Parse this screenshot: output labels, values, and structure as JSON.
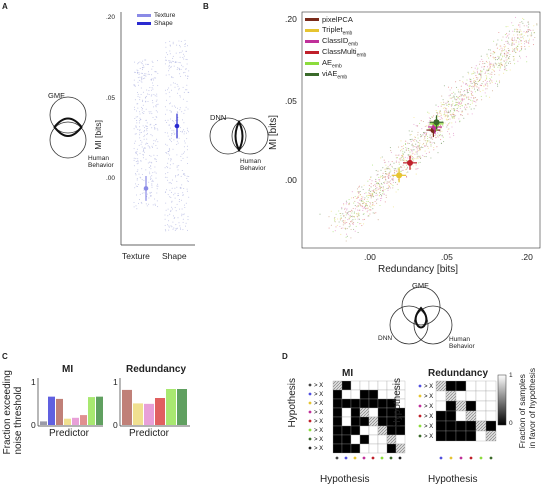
{
  "panels": {
    "a": "A",
    "b": "B",
    "c": "C",
    "d": "D"
  },
  "panel_a": {
    "legend": [
      {
        "label": "Texture",
        "color": "#8a8ae6"
      },
      {
        "label": "Shape",
        "color": "#2a2ad0"
      }
    ],
    "venn": {
      "top": "GMF",
      "bottom": "Human\nBehavior"
    },
    "ylabel": "MI [bits]",
    "yticks": [
      ".00",
      ".05",
      ".20"
    ],
    "xticks": [
      "Texture",
      "Shape"
    ]
  },
  "panel_b": {
    "legend": [
      {
        "label": "pixelPCA",
        "sub": "",
        "color": "#7a2a1a"
      },
      {
        "label": "Triplet",
        "sub": "emb",
        "color": "#e6c430"
      },
      {
        "label": "ClassID",
        "sub": "emb",
        "color": "#c0309a"
      },
      {
        "label": "ClassMulti",
        "sub": "emb",
        "color": "#c0202a"
      },
      {
        "label": "AE",
        "sub": "emb",
        "color": "#8cdc3c"
      },
      {
        "label": "viAE",
        "sub": "emb",
        "color": "#3a6a2a"
      }
    ],
    "venn_left": {
      "top": "DNN",
      "bottom": "Human\nBehavior"
    },
    "venn_bottom": {
      "top": "GMF",
      "left": "DNN",
      "right": "Human\nBehavior"
    },
    "ylabel": "MI [bits]",
    "xlabel": "Redundancy [bits]",
    "yticks": [
      ".00",
      ".05",
      ".20"
    ],
    "xticks": [
      ".00",
      ".05",
      ".20"
    ]
  },
  "panel_c": {
    "ylabel": "Fraction exceeding\nnoise threshold",
    "charts": [
      {
        "title": "MI",
        "xlabel": "Predictor",
        "ytick_top": "1",
        "ytick_bottom": "0"
      },
      {
        "title": "Redundancy",
        "xlabel": "Predictor",
        "ytick_top": "1",
        "ytick_bottom": "0"
      }
    ]
  },
  "panel_d": {
    "charts": [
      {
        "title": "MI",
        "ylabel": "Hypothesis",
        "xlabel": "Hypothesis"
      },
      {
        "title": "Redundancy",
        "ylabel": "Hypothesis",
        "xlabel": "Hypothesis"
      }
    ],
    "colorbar": {
      "top": "1",
      "bottom": "0",
      "label": "Fraction of samples\nin favor of hypothesis"
    }
  },
  "chart_data": [
    {
      "type": "scatter",
      "title": "",
      "ylabel": "MI [bits]",
      "categories": [
        "Texture",
        "Shape"
      ],
      "series": [
        {
          "name": "Texture",
          "mean": -0.004,
          "ci": [
            -0.008,
            0.0
          ]
        },
        {
          "name": "Shape",
          "mean": 0.035,
          "ci": [
            0.031,
            0.039
          ]
        }
      ]
    },
    {
      "type": "scatter",
      "title": "",
      "xlabel": "Redundancy [bits]",
      "ylabel": "MI [bits]",
      "series": [
        {
          "name": "pixelPCA",
          "x": 0.04,
          "y": 0.032
        },
        {
          "name": "Triplet_emb",
          "x": 0.018,
          "y": 0.003
        },
        {
          "name": "ClassID_emb",
          "x": 0.041,
          "y": 0.034
        },
        {
          "name": "ClassMulti_emb",
          "x": 0.025,
          "y": 0.011
        },
        {
          "name": "AE_emb",
          "x": 0.042,
          "y": 0.036
        },
        {
          "name": "viAE_emb",
          "x": 0.042,
          "y": 0.037
        }
      ]
    },
    {
      "type": "bar",
      "title": "MI",
      "xlabel": "Predictor",
      "ylim": [
        0,
        1
      ],
      "series": [
        {
          "name": "pixelPCA",
          "values": [
            0.08
          ]
        },
        {
          "name": "Texture",
          "values": [
            0.63
          ]
        },
        {
          "name": "Shape",
          "values": [
            0.58
          ]
        },
        {
          "name": "Triplet_emb",
          "values": [
            0.14
          ]
        },
        {
          "name": "ClassID_emb",
          "values": [
            0.16
          ]
        },
        {
          "name": "ClassMulti_emb",
          "values": [
            0.22
          ]
        },
        {
          "name": "AE_emb",
          "values": [
            0.62
          ]
        },
        {
          "name": "viAE_emb",
          "values": [
            0.63
          ]
        }
      ]
    },
    {
      "type": "bar",
      "title": "Redundancy",
      "xlabel": "Predictor",
      "ylim": [
        0,
        1
      ],
      "series": [
        {
          "name": "pixelPCA",
          "values": [
            0.78
          ]
        },
        {
          "name": "Triplet_emb",
          "values": [
            0.48
          ]
        },
        {
          "name": "ClassID_emb",
          "values": [
            0.47
          ]
        },
        {
          "name": "ClassMulti_emb",
          "values": [
            0.6
          ]
        },
        {
          "name": "AE_emb",
          "values": [
            0.8
          ]
        },
        {
          "name": "viAE_emb",
          "values": [
            0.8
          ]
        }
      ]
    },
    {
      "type": "heatmap",
      "title": "MI",
      "xlabel": "Hypothesis",
      "ylabel": "Hypothesis",
      "rows": [
        [
          0.5,
          1,
          0,
          0,
          0,
          0,
          0,
          0
        ],
        [
          1,
          0,
          0,
          1,
          1,
          0,
          0,
          0
        ],
        [
          1,
          1,
          1,
          1,
          1,
          1,
          1,
          0
        ],
        [
          1,
          0,
          1,
          0.5,
          0,
          1,
          1,
          1
        ],
        [
          1,
          0,
          1,
          1,
          0.5,
          1,
          1,
          1
        ],
        [
          1,
          1,
          1,
          0,
          0,
          0.5,
          1,
          1
        ],
        [
          1,
          1,
          0,
          1,
          0,
          0,
          0.5,
          0
        ],
        [
          1,
          1,
          1,
          0,
          0,
          0,
          1,
          0.5
        ]
      ]
    },
    {
      "type": "heatmap",
      "title": "Redundancy",
      "xlabel": "Hypothesis",
      "ylabel": "Hypothesis",
      "rows": [
        [
          0.5,
          1,
          1,
          0,
          0,
          0
        ],
        [
          0,
          0.5,
          0,
          0,
          0,
          0
        ],
        [
          0,
          1,
          0.5,
          1,
          0,
          0
        ],
        [
          1,
          1,
          0,
          0.5,
          0,
          0
        ],
        [
          1,
          1,
          1,
          1,
          0.5,
          1
        ],
        [
          1,
          1,
          1,
          1,
          0,
          0.5
        ]
      ]
    }
  ]
}
